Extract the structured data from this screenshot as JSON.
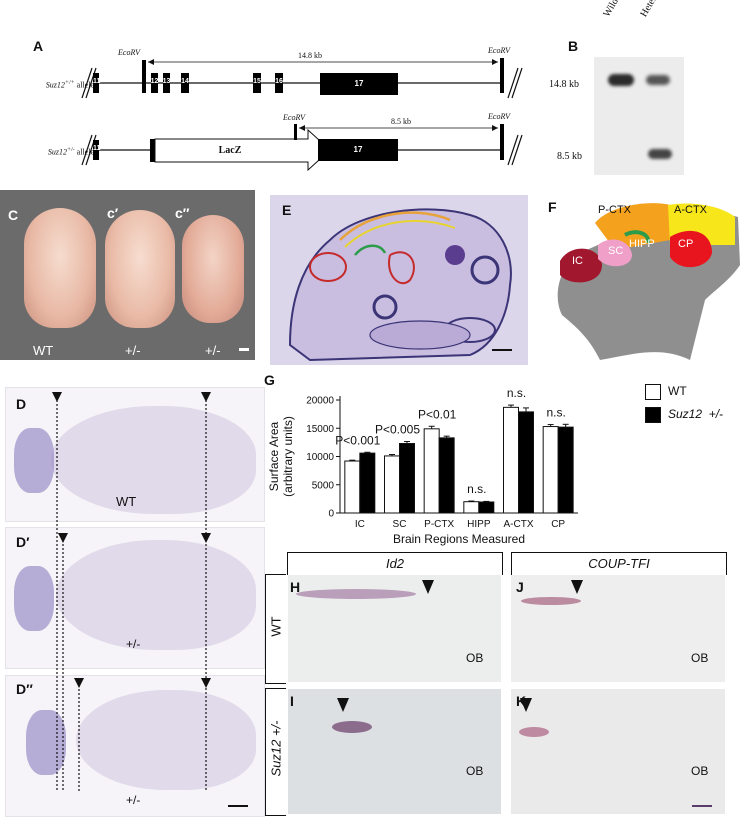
{
  "panels": {
    "a": "A",
    "b": "B",
    "c": "C",
    "c1": "c′",
    "c2": "c″",
    "d": "D",
    "d1": "D′",
    "d2": "D′′",
    "e": "E",
    "f": "F",
    "g": "G",
    "h": "H",
    "i": "I",
    "j": "J",
    "k": "K"
  },
  "panelA": {
    "wt_allele_prefix": "Suz12",
    "wt_allele_sup": "+/+",
    "het_allele_prefix": "Suz12",
    "het_allele_sup": "+/-",
    "allele_word": "allele",
    "ecorv": "EcoRV",
    "dist_wt": "14.8 kb",
    "dist_het": "8.5 kb",
    "exons_wt": [
      "11",
      "12",
      "13",
      "14",
      "15",
      "16",
      "17"
    ],
    "exons_het": [
      "11",
      "17"
    ],
    "lacz": "LacZ"
  },
  "panelB": {
    "lanes": [
      "Wild type",
      "Heterozygous"
    ],
    "markers": [
      "14.8 kb",
      "8.5 kb"
    ]
  },
  "panelC": {
    "labels": [
      "WT",
      "+/-",
      "+/-"
    ]
  },
  "panelD": {
    "labels": [
      "WT",
      "+/-",
      "+/-"
    ]
  },
  "panelF": {
    "regions": [
      "P-CTX",
      "A-CTX",
      "IC",
      "SC",
      "HIPP",
      "CP"
    ]
  },
  "panelsHK": {
    "gene1": "Id2",
    "gene2": "COUP-TFI",
    "row1": "WT",
    "row2": "Suz12 +/-",
    "ob": "OB"
  },
  "legend": {
    "wt": "WT",
    "het_gene": "Suz12",
    "het_geno": "+/-"
  },
  "chart_data": {
    "type": "bar",
    "categories": [
      "IC",
      "SC",
      "P-CTX",
      "HIPP",
      "A-CTX",
      "CP"
    ],
    "series": [
      {
        "name": "WT",
        "values": [
          9200,
          10100,
          14900,
          2000,
          18700,
          15300
        ],
        "errors": [
          150,
          250,
          450,
          120,
          400,
          350
        ]
      },
      {
        "name": "Suz12 +/-",
        "values": [
          10600,
          12300,
          13300,
          1950,
          17900,
          15200
        ],
        "errors": [
          150,
          350,
          300,
          100,
          700,
          500
        ]
      }
    ],
    "annotations": [
      "P<0.001",
      "P<0.005",
      "P<0.01",
      "n.s.",
      "n.s.",
      "n.s."
    ],
    "ylabel": "Surface Area",
    "ylabel2": "(arbitrary units)",
    "xlabel": "Brain Regions Measured",
    "ylim": [
      0,
      20000
    ],
    "yticks": [
      "0",
      "5000",
      "10000",
      "15000",
      "20000"
    ],
    "colors": {
      "WT": "#ffffff",
      "Suz12 +/-": "#000000"
    }
  }
}
